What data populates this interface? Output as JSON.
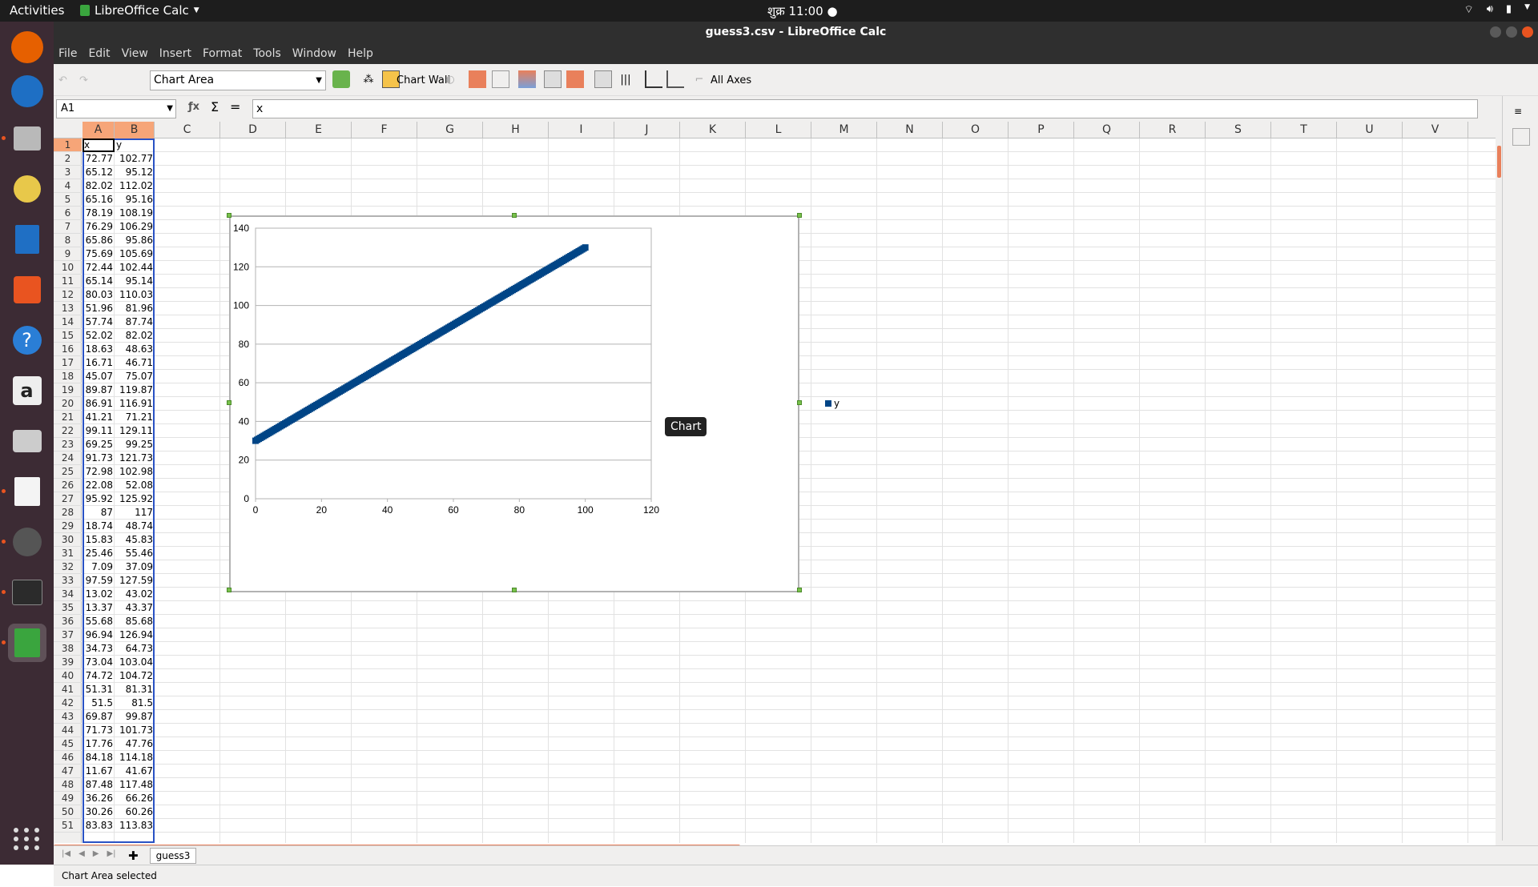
{
  "topbar": {
    "activities": "Activities",
    "app": "LibreOffice Calc",
    "clock": "शुक्र 11:00 ●"
  },
  "window": {
    "title": "guess3.csv - LibreOffice Calc"
  },
  "menu": [
    "File",
    "Edit",
    "View",
    "Insert",
    "Format",
    "Tools",
    "Window",
    "Help"
  ],
  "toolbar": {
    "element_select": "Chart Area",
    "chart_wall": "Chart Wall",
    "all_axes": "All Axes"
  },
  "formula": {
    "name_box": "A1",
    "content": "x"
  },
  "columns": [
    "A",
    "B",
    "C",
    "D",
    "E",
    "F",
    "G",
    "H",
    "I",
    "J",
    "K",
    "L",
    "M",
    "N",
    "O",
    "P",
    "Q",
    "R",
    "S",
    "T",
    "U",
    "V"
  ],
  "rows": [
    "1",
    "2",
    "3",
    "4",
    "5",
    "6",
    "7",
    "8",
    "9",
    "10",
    "11",
    "12",
    "13",
    "14",
    "15",
    "16",
    "17",
    "18",
    "19",
    "20",
    "21",
    "22",
    "23",
    "24",
    "25",
    "26",
    "27",
    "28",
    "29",
    "30",
    "31",
    "32",
    "33",
    "34",
    "35",
    "36",
    "37",
    "38",
    "39",
    "40",
    "41",
    "42",
    "43",
    "44",
    "45",
    "46",
    "47",
    "48",
    "49",
    "50",
    "51"
  ],
  "headers": [
    "x",
    "y"
  ],
  "data": [
    [
      "72.77",
      "102.77"
    ],
    [
      "65.12",
      "95.12"
    ],
    [
      "82.02",
      "112.02"
    ],
    [
      "65.16",
      "95.16"
    ],
    [
      "78.19",
      "108.19"
    ],
    [
      "76.29",
      "106.29"
    ],
    [
      "65.86",
      "95.86"
    ],
    [
      "75.69",
      "105.69"
    ],
    [
      "72.44",
      "102.44"
    ],
    [
      "65.14",
      "95.14"
    ],
    [
      "80.03",
      "110.03"
    ],
    [
      "51.96",
      "81.96"
    ],
    [
      "57.74",
      "87.74"
    ],
    [
      "52.02",
      "82.02"
    ],
    [
      "18.63",
      "48.63"
    ],
    [
      "16.71",
      "46.71"
    ],
    [
      "45.07",
      "75.07"
    ],
    [
      "89.87",
      "119.87"
    ],
    [
      "86.91",
      "116.91"
    ],
    [
      "41.21",
      "71.21"
    ],
    [
      "99.11",
      "129.11"
    ],
    [
      "69.25",
      "99.25"
    ],
    [
      "91.73",
      "121.73"
    ],
    [
      "72.98",
      "102.98"
    ],
    [
      "22.08",
      "52.08"
    ],
    [
      "95.92",
      "125.92"
    ],
    [
      "87",
      "117"
    ],
    [
      "18.74",
      "48.74"
    ],
    [
      "15.83",
      "45.83"
    ],
    [
      "25.46",
      "55.46"
    ],
    [
      "7.09",
      "37.09"
    ],
    [
      "97.59",
      "127.59"
    ],
    [
      "13.02",
      "43.02"
    ],
    [
      "13.37",
      "43.37"
    ],
    [
      "55.68",
      "85.68"
    ],
    [
      "96.94",
      "126.94"
    ],
    [
      "34.73",
      "64.73"
    ],
    [
      "73.04",
      "103.04"
    ],
    [
      "74.72",
      "104.72"
    ],
    [
      "51.31",
      "81.31"
    ],
    [
      "51.5",
      "81.5"
    ],
    [
      "69.87",
      "99.87"
    ],
    [
      "71.73",
      "101.73"
    ],
    [
      "17.76",
      "47.76"
    ],
    [
      "84.18",
      "114.18"
    ],
    [
      "11.67",
      "41.67"
    ],
    [
      "87.48",
      "117.48"
    ],
    [
      "36.26",
      "66.26"
    ],
    [
      "30.26",
      "60.26"
    ],
    [
      "83.83",
      "113.83"
    ]
  ],
  "chart_data": {
    "type": "scatter",
    "series": [
      {
        "name": "y",
        "color": "#004586"
      }
    ],
    "xlim": [
      0,
      120
    ],
    "ylim": [
      0,
      140
    ],
    "xticks": [
      "0",
      "20",
      "40",
      "60",
      "80",
      "100",
      "120"
    ],
    "yticks": [
      "0",
      "20",
      "40",
      "60",
      "80",
      "100",
      "120",
      "140"
    ],
    "grid": true,
    "legend": "right",
    "relation": "y = x + 30",
    "x_range_of_points": [
      0,
      100
    ]
  },
  "tooltip": "Chart",
  "sheet_tab": "guess3",
  "status": "Chart Area selected"
}
